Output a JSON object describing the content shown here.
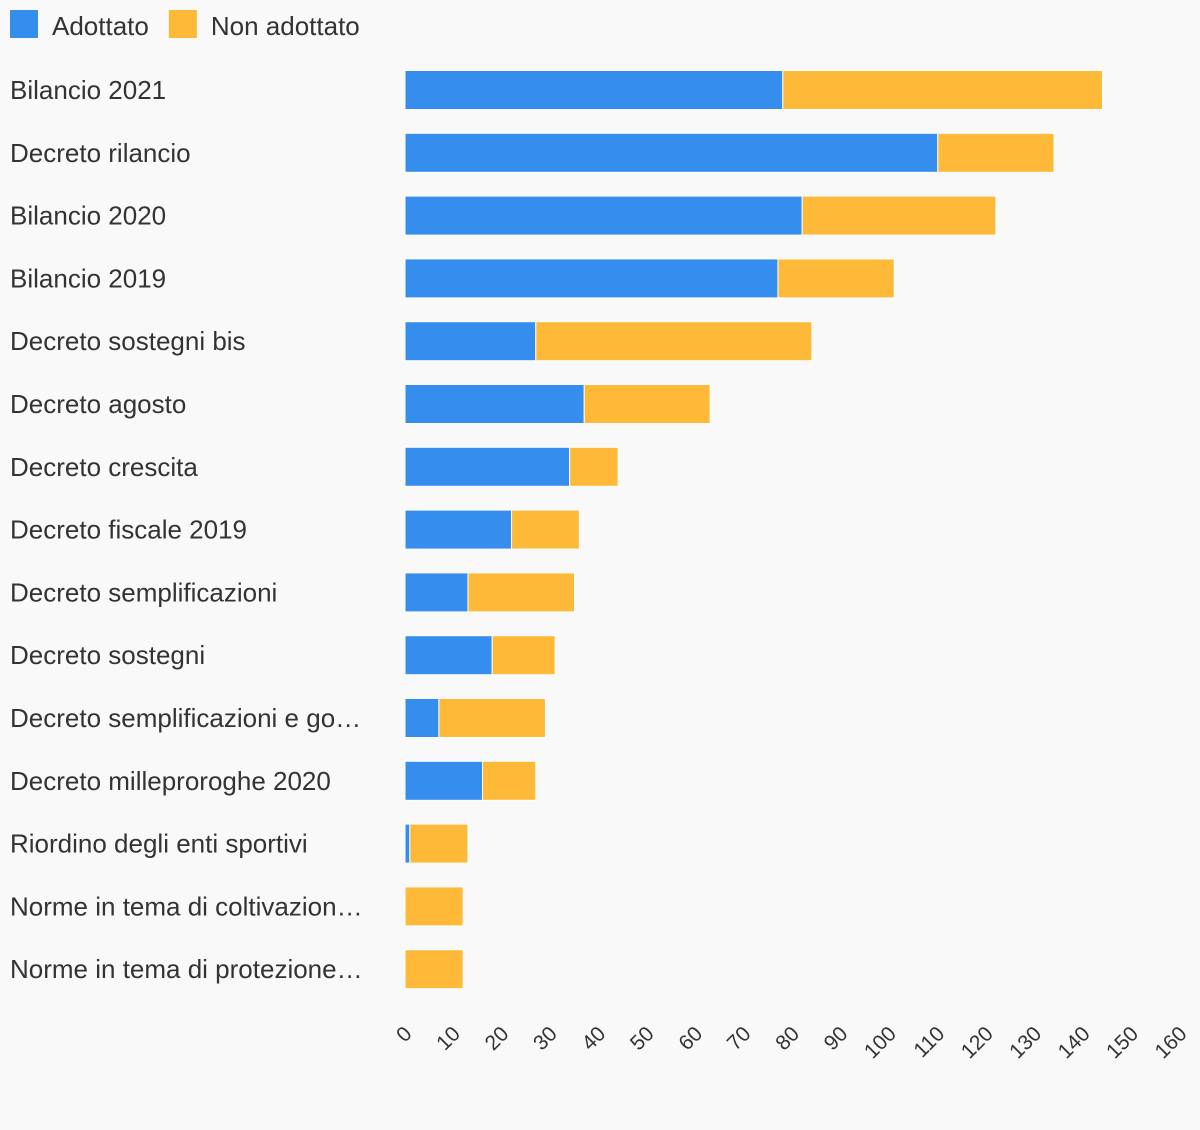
{
  "chart_data": {
    "type": "bar",
    "orientation": "horizontal",
    "stacked": true,
    "title": "",
    "xlabel": "",
    "ylabel": "",
    "xlim": [
      0,
      160
    ],
    "grid": false,
    "legend_position": "top-left",
    "x_ticks": [
      "0",
      "10",
      "20",
      "30",
      "40",
      "50",
      "60",
      "70",
      "80",
      "90",
      "100",
      "110",
      "120",
      "130",
      "140",
      "150",
      "160"
    ],
    "categories": [
      "Bilancio 2021",
      "Decreto rilancio",
      "Bilancio 2020",
      "Bilancio 2019",
      "Decreto sostegni bis",
      "Decreto agosto",
      "Decreto crescita",
      "Decreto fiscale 2019",
      "Decreto semplificazioni",
      "Decreto sostegni",
      "Decreto semplificazioni e go…",
      "Decreto milleproroghe 2020",
      "Riordino degli enti sportivi",
      "Norme in tema di coltivazion…",
      "Norme in tema di protezione…"
    ],
    "series": [
      {
        "name": "Adottato",
        "color": "#358ded",
        "values": [
          78,
          110,
          82,
          77,
          27,
          37,
          34,
          22,
          13,
          18,
          7,
          16,
          1,
          0,
          0
        ]
      },
      {
        "name": "Non adottato",
        "color": "#ffb938",
        "values": [
          66,
          24,
          40,
          24,
          57,
          26,
          10,
          14,
          22,
          13,
          22,
          11,
          12,
          12,
          12
        ]
      }
    ]
  }
}
